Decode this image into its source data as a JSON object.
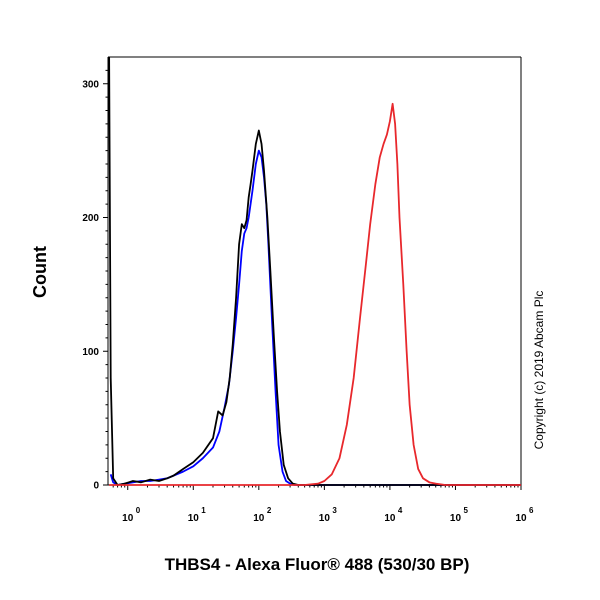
{
  "chart_data": {
    "type": "line",
    "title": "",
    "xlabel": "THBS4 - Alexa Fluor® 488 (530/30 BP)",
    "ylabel": "Count",
    "x_scale": "log",
    "xlim": [
      0.5,
      1000000
    ],
    "ylim": [
      0,
      320
    ],
    "x_ticks": [
      {
        "base": "10",
        "exp": "0",
        "value": 1
      },
      {
        "base": "10",
        "exp": "1",
        "value": 10
      },
      {
        "base": "10",
        "exp": "2",
        "value": 100
      },
      {
        "base": "10",
        "exp": "3",
        "value": 1000
      },
      {
        "base": "10",
        "exp": "4",
        "value": 10000
      },
      {
        "base": "10",
        "exp": "5",
        "value": 100000
      },
      {
        "base": "10",
        "exp": "6",
        "value": 1000000
      }
    ],
    "y_ticks": [
      {
        "label": "0",
        "value": 0
      },
      {
        "label": "100",
        "value": 100
      },
      {
        "label": "200",
        "value": 200
      },
      {
        "label": "300",
        "value": 300
      }
    ],
    "grid": false,
    "legend": "none",
    "copyright": "Copyright (c) 2019 Abcam Plc",
    "series": [
      {
        "color": "#0000ff",
        "x": [
          0.55,
          0.6,
          0.7,
          0.9,
          1.2,
          1.6,
          2.2,
          3,
          4,
          5,
          7,
          10,
          14,
          20,
          25,
          30,
          35,
          40,
          45,
          50,
          55,
          60,
          65,
          70,
          80,
          90,
          100,
          110,
          120,
          130,
          140,
          160,
          180,
          200,
          230,
          260,
          300,
          350,
          400,
          1000000
        ],
        "y": [
          8,
          2,
          0,
          1,
          2,
          3,
          3,
          4,
          5,
          7,
          10,
          14,
          20,
          28,
          40,
          58,
          75,
          100,
          125,
          150,
          175,
          188,
          192,
          200,
          220,
          240,
          250,
          245,
          230,
          210,
          180,
          120,
          70,
          30,
          10,
          3,
          1,
          0,
          0,
          0
        ]
      },
      {
        "color": "#000000",
        "x": [
          0.52,
          0.55,
          0.6,
          0.7,
          0.9,
          1.2,
          1.6,
          2.2,
          3,
          4,
          5,
          7,
          10,
          14,
          20,
          24,
          28,
          32,
          36,
          40,
          45,
          50,
          55,
          60,
          65,
          70,
          75,
          80,
          90,
          100,
          110,
          120,
          135,
          150,
          170,
          190,
          210,
          240,
          280,
          330,
          400,
          1000000
        ],
        "y": [
          320,
          80,
          5,
          0,
          1,
          3,
          2,
          4,
          3,
          5,
          7,
          12,
          17,
          24,
          35,
          55,
          52,
          62,
          80,
          105,
          140,
          180,
          195,
          192,
          198,
          215,
          225,
          235,
          255,
          265,
          255,
          235,
          200,
          160,
          110,
          70,
          40,
          15,
          5,
          1,
          0,
          0
        ]
      },
      {
        "color": "#e8282c",
        "x": [
          0.52,
          500,
          800,
          1000,
          1300,
          1700,
          2200,
          2800,
          3500,
          4300,
          5000,
          6000,
          7000,
          8000,
          9000,
          10000,
          11000,
          12000,
          13000,
          14000,
          16000,
          18000,
          20000,
          23000,
          27000,
          32000,
          40000,
          50000,
          70000,
          1000000
        ],
        "y": [
          0,
          0,
          1,
          3,
          8,
          20,
          45,
          80,
          125,
          165,
          195,
          225,
          245,
          255,
          262,
          272,
          285,
          270,
          240,
          200,
          150,
          100,
          60,
          30,
          12,
          5,
          2,
          1,
          0,
          0
        ]
      }
    ]
  }
}
